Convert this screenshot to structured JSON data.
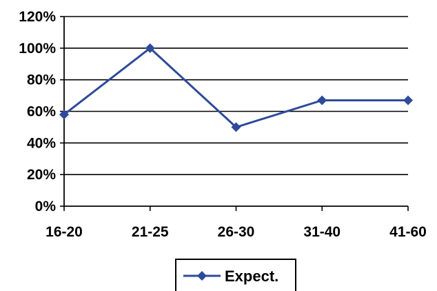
{
  "chart_data": {
    "type": "line",
    "categories": [
      "16-20",
      "21-25",
      "26-30",
      "31-40",
      "41-60"
    ],
    "series": [
      {
        "name": "Expect.",
        "values": [
          58,
          100,
          50,
          67,
          67
        ],
        "color": "#2e4a9a",
        "marker": "diamond"
      }
    ],
    "ylim": [
      0,
      120
    ],
    "ytick_labels": [
      "0%",
      "20%",
      "40%",
      "60%",
      "80%",
      "100%",
      "120%"
    ],
    "grid": true,
    "legend_position": "bottom",
    "title": "",
    "xlabel": "",
    "ylabel": ""
  }
}
